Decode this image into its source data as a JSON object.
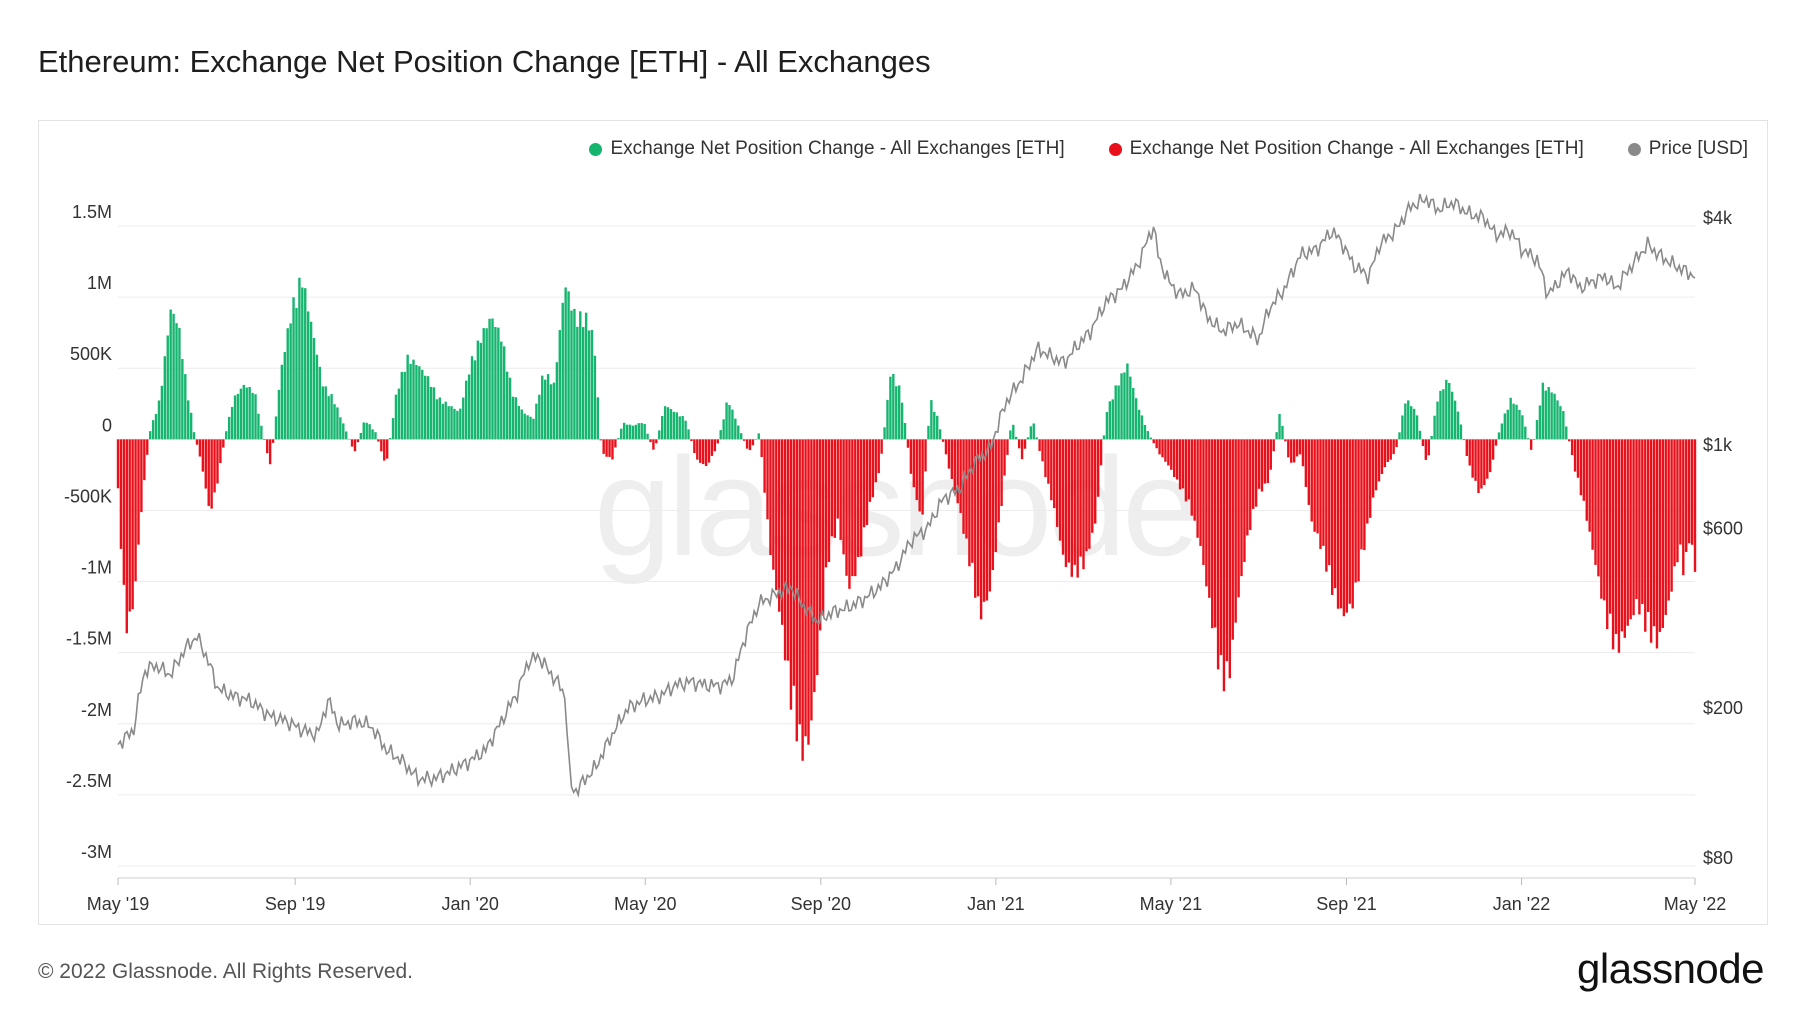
{
  "title": "Ethereum: Exchange Net Position Change [ETH] - All Exchanges",
  "footer": "© 2022 Glassnode. All Rights Reserved.",
  "brand": "glassnode",
  "watermark": "glassnode",
  "colors": {
    "positive": "#16b56f",
    "negative": "#e8101a",
    "price": "#8a8a8a",
    "grid": "#ececec"
  },
  "legend": [
    {
      "label": "Exchange Net Position Change - All Exchanges [ETH]",
      "color": "#16b56f"
    },
    {
      "label": "Exchange Net Position Change - All Exchanges [ETH]",
      "color": "#e8101a"
    },
    {
      "label": "Price [USD]",
      "color": "#8a8a8a"
    }
  ],
  "chart_data": {
    "type": "bar",
    "title": "Ethereum: Exchange Net Position Change [ETH] - All Exchanges",
    "y_left": {
      "min": -3000000,
      "max": 1500000,
      "ticks": [
        1500000,
        1000000,
        500000,
        0,
        -500000,
        -1000000,
        -1500000,
        -2000000,
        -2500000,
        -3000000
      ],
      "tick_labels": [
        "1.5M",
        "1M",
        "500K",
        "0",
        "-500K",
        "-1M",
        "-1.5M",
        "-2M",
        "-2.5M",
        "-3M"
      ]
    },
    "y_right": {
      "scale": "log",
      "min": 80,
      "max": 4000,
      "ticks": [
        4000,
        1000,
        600,
        200,
        80
      ],
      "tick_labels": [
        "$4k",
        "$1k",
        "$600",
        "$200",
        "$80"
      ]
    },
    "x_axis": {
      "min": 2019.33,
      "max": 2022.33,
      "ticks": [
        2019.33,
        2019.667,
        2020.0,
        2020.333,
        2020.667,
        2021.0,
        2021.333,
        2021.667,
        2022.0,
        2022.33
      ],
      "tick_labels": [
        "May '19",
        "Sep '19",
        "Jan '20",
        "May '20",
        "Sep '20",
        "Jan '21",
        "May '21",
        "Sep '21",
        "Jan '22",
        "May '22"
      ]
    },
    "net_position_keypoints": [
      [
        2019.33,
        -400000
      ],
      [
        2019.345,
        -1400000
      ],
      [
        2019.36,
        -1200000
      ],
      [
        2019.375,
        -500000
      ],
      [
        2019.39,
        50000
      ],
      [
        2019.41,
        300000
      ],
      [
        2019.43,
        950000
      ],
      [
        2019.445,
        850000
      ],
      [
        2019.46,
        400000
      ],
      [
        2019.475,
        50000
      ],
      [
        2019.49,
        -200000
      ],
      [
        2019.505,
        -550000
      ],
      [
        2019.52,
        -300000
      ],
      [
        2019.535,
        50000
      ],
      [
        2019.55,
        300000
      ],
      [
        2019.57,
        400000
      ],
      [
        2019.59,
        350000
      ],
      [
        2019.605,
        50000
      ],
      [
        2019.62,
        -200000
      ],
      [
        2019.64,
        500000
      ],
      [
        2019.66,
        950000
      ],
      [
        2019.68,
        1200000
      ],
      [
        2019.7,
        800000
      ],
      [
        2019.72,
        400000
      ],
      [
        2019.74,
        300000
      ],
      [
        2019.76,
        100000
      ],
      [
        2019.78,
        -100000
      ],
      [
        2019.8,
        150000
      ],
      [
        2019.82,
        50000
      ],
      [
        2019.84,
        -200000
      ],
      [
        2019.86,
        350000
      ],
      [
        2019.88,
        600000
      ],
      [
        2019.9,
        550000
      ],
      [
        2019.92,
        450000
      ],
      [
        2019.94,
        300000
      ],
      [
        2019.96,
        250000
      ],
      [
        2019.98,
        200000
      ],
      [
        2020.0,
        550000
      ],
      [
        2020.02,
        750000
      ],
      [
        2020.04,
        900000
      ],
      [
        2020.06,
        750000
      ],
      [
        2020.08,
        350000
      ],
      [
        2020.1,
        200000
      ],
      [
        2020.12,
        150000
      ],
      [
        2020.14,
        500000
      ],
      [
        2020.16,
        400000
      ],
      [
        2020.18,
        1150000
      ],
      [
        2020.2,
        900000
      ],
      [
        2020.22,
        900000
      ],
      [
        2020.235,
        750000
      ],
      [
        2020.25,
        -100000
      ],
      [
        2020.27,
        -150000
      ],
      [
        2020.29,
        120000
      ],
      [
        2020.31,
        100000
      ],
      [
        2020.33,
        130000
      ],
      [
        2020.35,
        -100000
      ],
      [
        2020.37,
        250000
      ],
      [
        2020.39,
        200000
      ],
      [
        2020.41,
        150000
      ],
      [
        2020.43,
        -150000
      ],
      [
        2020.45,
        -200000
      ],
      [
        2020.47,
        -50000
      ],
      [
        2020.49,
        300000
      ],
      [
        2020.51,
        100000
      ],
      [
        2020.53,
        -100000
      ],
      [
        2020.55,
        50000
      ],
      [
        2020.57,
        -800000
      ],
      [
        2020.59,
        -1300000
      ],
      [
        2020.61,
        -1900000
      ],
      [
        2020.63,
        -2300000
      ],
      [
        2020.645,
        -2200000
      ],
      [
        2020.66,
        -1700000
      ],
      [
        2020.68,
        -900000
      ],
      [
        2020.7,
        -600000
      ],
      [
        2020.72,
        -1100000
      ],
      [
        2020.74,
        -900000
      ],
      [
        2020.76,
        -500000
      ],
      [
        2020.78,
        -200000
      ],
      [
        2020.8,
        500000
      ],
      [
        2020.82,
        350000
      ],
      [
        2020.84,
        -300000
      ],
      [
        2020.86,
        -600000
      ],
      [
        2020.875,
        300000
      ],
      [
        2020.89,
        150000
      ],
      [
        2020.91,
        -200000
      ],
      [
        2020.93,
        -500000
      ],
      [
        2020.95,
        -900000
      ],
      [
        2020.97,
        -1300000
      ],
      [
        2020.99,
        -1100000
      ],
      [
        2021.01,
        -500000
      ],
      [
        2021.03,
        150000
      ],
      [
        2021.05,
        -150000
      ],
      [
        2021.07,
        150000
      ],
      [
        2021.09,
        -200000
      ],
      [
        2021.11,
        -500000
      ],
      [
        2021.13,
        -900000
      ],
      [
        2021.15,
        -1000000
      ],
      [
        2021.17,
        -900000
      ],
      [
        2021.19,
        -600000
      ],
      [
        2021.21,
        200000
      ],
      [
        2021.23,
        400000
      ],
      [
        2021.25,
        550000
      ],
      [
        2021.27,
        250000
      ],
      [
        2021.29,
        50000
      ],
      [
        2021.31,
        -100000
      ],
      [
        2021.33,
        -200000
      ],
      [
        2021.35,
        -350000
      ],
      [
        2021.37,
        -500000
      ],
      [
        2021.39,
        -800000
      ],
      [
        2021.41,
        -1300000
      ],
      [
        2021.43,
        -1800000
      ],
      [
        2021.445,
        -1700000
      ],
      [
        2021.46,
        -1200000
      ],
      [
        2021.48,
        -700000
      ],
      [
        2021.5,
        -400000
      ],
      [
        2021.52,
        -300000
      ],
      [
        2021.54,
        200000
      ],
      [
        2021.56,
        -200000
      ],
      [
        2021.58,
        -100000
      ],
      [
        2021.6,
        -600000
      ],
      [
        2021.62,
        -800000
      ],
      [
        2021.64,
        -1100000
      ],
      [
        2021.66,
        -1300000
      ],
      [
        2021.68,
        -1200000
      ],
      [
        2021.7,
        -800000
      ],
      [
        2021.72,
        -400000
      ],
      [
        2021.74,
        -200000
      ],
      [
        2021.76,
        -100000
      ],
      [
        2021.78,
        300000
      ],
      [
        2021.8,
        200000
      ],
      [
        2021.82,
        -200000
      ],
      [
        2021.84,
        300000
      ],
      [
        2021.86,
        450000
      ],
      [
        2021.88,
        200000
      ],
      [
        2021.9,
        -200000
      ],
      [
        2021.92,
        -400000
      ],
      [
        2021.94,
        -250000
      ],
      [
        2021.96,
        100000
      ],
      [
        2021.98,
        300000
      ],
      [
        2022.0,
        200000
      ],
      [
        2022.02,
        -100000
      ],
      [
        2022.04,
        400000
      ],
      [
        2022.06,
        350000
      ],
      [
        2022.08,
        200000
      ],
      [
        2022.1,
        -200000
      ],
      [
        2022.12,
        -500000
      ],
      [
        2022.14,
        -900000
      ],
      [
        2022.16,
        -1300000
      ],
      [
        2022.18,
        -1550000
      ],
      [
        2022.2,
        -1400000
      ],
      [
        2022.22,
        -1200000
      ],
      [
        2022.24,
        -1400000
      ],
      [
        2022.26,
        -1500000
      ],
      [
        2022.28,
        -1200000
      ],
      [
        2022.3,
        -800000
      ],
      [
        2022.31,
        -1000000
      ],
      [
        2022.32,
        -700000
      ],
      [
        2022.33,
        -950000
      ]
    ],
    "price_keypoints": [
      [
        2019.33,
        160
      ],
      [
        2019.36,
        175
      ],
      [
        2019.38,
        250
      ],
      [
        2019.4,
        260
      ],
      [
        2019.43,
        245
      ],
      [
        2019.46,
        290
      ],
      [
        2019.48,
        310
      ],
      [
        2019.5,
        270
      ],
      [
        2019.52,
        225
      ],
      [
        2019.55,
        215
      ],
      [
        2019.58,
        210
      ],
      [
        2019.62,
        190
      ],
      [
        2019.65,
        185
      ],
      [
        2019.68,
        175
      ],
      [
        2019.71,
        170
      ],
      [
        2019.73,
        210
      ],
      [
        2019.75,
        180
      ],
      [
        2019.78,
        185
      ],
      [
        2019.81,
        180
      ],
      [
        2019.84,
        155
      ],
      [
        2019.87,
        145
      ],
      [
        2019.9,
        130
      ],
      [
        2019.93,
        130
      ],
      [
        2019.96,
        135
      ],
      [
        2019.98,
        140
      ],
      [
        2020.0,
        145
      ],
      [
        2020.03,
        155
      ],
      [
        2020.06,
        185
      ],
      [
        2020.09,
        220
      ],
      [
        2020.11,
        265
      ],
      [
        2020.13,
        275
      ],
      [
        2020.15,
        250
      ],
      [
        2020.17,
        230
      ],
      [
        2020.18,
        215
      ],
      [
        2020.19,
        125
      ],
      [
        2020.2,
        120
      ],
      [
        2020.22,
        130
      ],
      [
        2020.24,
        140
      ],
      [
        2020.27,
        170
      ],
      [
        2020.3,
        200
      ],
      [
        2020.33,
        210
      ],
      [
        2020.36,
        215
      ],
      [
        2020.39,
        230
      ],
      [
        2020.42,
        235
      ],
      [
        2020.45,
        230
      ],
      [
        2020.48,
        230
      ],
      [
        2020.5,
        240
      ],
      [
        2020.52,
        300
      ],
      [
        2020.55,
        380
      ],
      [
        2020.58,
        400
      ],
      [
        2020.61,
        420
      ],
      [
        2020.63,
        380
      ],
      [
        2020.66,
        340
      ],
      [
        2020.69,
        360
      ],
      [
        2020.72,
        370
      ],
      [
        2020.75,
        390
      ],
      [
        2020.78,
        420
      ],
      [
        2020.81,
        470
      ],
      [
        2020.84,
        560
      ],
      [
        2020.87,
        600
      ],
      [
        2020.9,
        720
      ],
      [
        2020.93,
        760
      ],
      [
        2020.96,
        900
      ],
      [
        2020.99,
        980
      ],
      [
        2021.02,
        1300
      ],
      [
        2021.05,
        1500
      ],
      [
        2021.08,
        1800
      ],
      [
        2021.11,
        1700
      ],
      [
        2021.13,
        1650
      ],
      [
        2021.15,
        1800
      ],
      [
        2021.18,
        2000
      ],
      [
        2021.21,
        2400
      ],
      [
        2021.24,
        2600
      ],
      [
        2021.27,
        3000
      ],
      [
        2021.3,
        3800
      ],
      [
        2021.31,
        3100
      ],
      [
        2021.33,
        2700
      ],
      [
        2021.35,
        2500
      ],
      [
        2021.38,
        2600
      ],
      [
        2021.4,
        2200
      ],
      [
        2021.43,
        2000
      ],
      [
        2021.46,
        2100
      ],
      [
        2021.5,
        1900
      ],
      [
        2021.52,
        2300
      ],
      [
        2021.55,
        2600
      ],
      [
        2021.58,
        3200
      ],
      [
        2021.61,
        3300
      ],
      [
        2021.64,
        3700
      ],
      [
        2021.66,
        3400
      ],
      [
        2021.68,
        3000
      ],
      [
        2021.71,
        2800
      ],
      [
        2021.73,
        3400
      ],
      [
        2021.76,
        3700
      ],
      [
        2021.79,
        4300
      ],
      [
        2021.82,
        4500
      ],
      [
        2021.84,
        4200
      ],
      [
        2021.87,
        4400
      ],
      [
        2021.9,
        4100
      ],
      [
        2021.93,
        4000
      ],
      [
        2021.95,
        3600
      ],
      [
        2021.98,
        3700
      ],
      [
        2022.0,
        3300
      ],
      [
        2022.03,
        3100
      ],
      [
        2022.05,
        2500
      ],
      [
        2022.07,
        2700
      ],
      [
        2022.09,
        2900
      ],
      [
        2022.11,
        2600
      ],
      [
        2022.13,
        2700
      ],
      [
        2022.16,
        2800
      ],
      [
        2022.18,
        2600
      ],
      [
        2022.21,
        3000
      ],
      [
        2022.24,
        3400
      ],
      [
        2022.26,
        3200
      ],
      [
        2022.29,
        3000
      ],
      [
        2022.31,
        2900
      ],
      [
        2022.33,
        2800
      ]
    ]
  }
}
